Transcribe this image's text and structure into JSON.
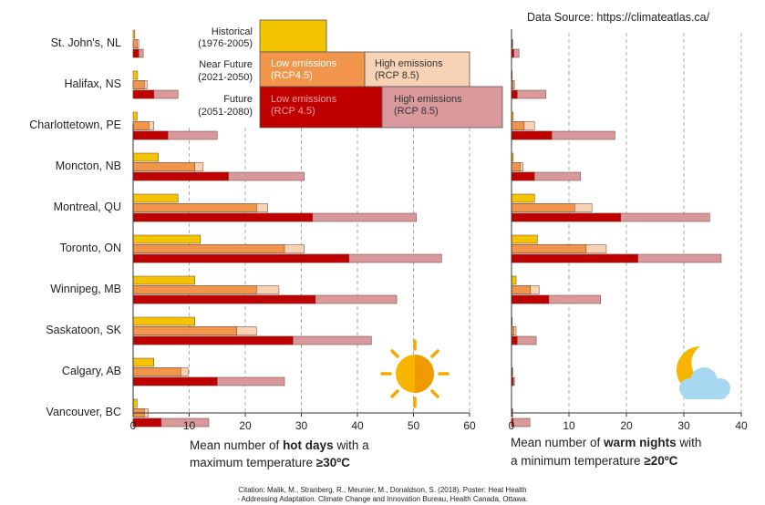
{
  "source": "Data Source: https://climateatlas.ca/",
  "citation": [
    "Citation: Malik, M., Stranberg, R., Meunier, M., Donaldson, S. (2018). Poster: Heat Health",
    "- Addressing Adaptation. Climate Change and Innovation Bureau, Health Canada, Ottawa."
  ],
  "legend": {
    "historical": {
      "label": "Historical",
      "period": "(1976-2005)"
    },
    "near_future": {
      "label": "Near Future",
      "period": "(2021-2050)"
    },
    "future": {
      "label": "Future",
      "period": "(2051-2080)"
    },
    "near_low": [
      "Low emissions",
      "(RCP4.5)"
    ],
    "near_high": [
      "High emissions",
      "(RCP 8.5)"
    ],
    "far_low": [
      "Low emissions",
      "(RCP 4.5)"
    ],
    "far_high": [
      "High emissions",
      "(RCP 8.5)"
    ]
  },
  "colors": {
    "historical": "#f5c400",
    "near_low": "#f0954a",
    "near_high": "#f8d2b4",
    "far_low": "#c00000",
    "far_high": "#d9999c"
  },
  "icons": [
    "sun-icon",
    "moon-cloud-icon"
  ],
  "chart_data": [
    {
      "type": "bar",
      "orientation": "horizontal",
      "categories": [
        "St. John's, NL",
        "Halifax, NS",
        "Charlottetown, PE",
        "Moncton, NB",
        "Montreal, QU",
        "Toronto, ON",
        "Winnipeg, MB",
        "Saskatoon, SK",
        "Calgary, AB",
        "Vancouver, BC"
      ],
      "xlabel": [
        "Mean number of ",
        "hot days",
        " with a",
        "maximum temperature ",
        "≥30ºC"
      ],
      "xlim": [
        0,
        60
      ],
      "xticks": [
        0,
        10,
        20,
        30,
        40,
        50,
        60
      ],
      "series": [
        {
          "name": "Historical (1976-2005)",
          "values": [
            0.3,
            0.8,
            0.7,
            4.5,
            8,
            12,
            11,
            11,
            3.7,
            0.7
          ]
        },
        {
          "name": "Near Future (2021-2050) Low emissions (RCP4.5)",
          "values": [
            0.7,
            2,
            2.8,
            11,
            22,
            27,
            22,
            18.5,
            8.5,
            2
          ]
        },
        {
          "name": "Near Future (2021-2050) High emissions (RCP 8.5)",
          "values": [
            1,
            2.5,
            3.7,
            12.5,
            24,
            30.5,
            26,
            22,
            9.8,
            2.7
          ]
        },
        {
          "name": "Future (2051-2080) Low emissions (RCP 4.5)",
          "values": [
            1,
            3.7,
            6.2,
            17,
            32,
            38.5,
            32.5,
            28.5,
            15,
            5
          ]
        },
        {
          "name": "Future (2051-2080) High emissions (RCP 8.5)",
          "values": [
            1.8,
            8,
            15,
            30.5,
            50.5,
            55,
            47,
            42.5,
            27,
            13.5
          ]
        }
      ]
    },
    {
      "type": "bar",
      "orientation": "horizontal",
      "categories": [
        "St. John's, NL",
        "Halifax, NS",
        "Charlottetown, PE",
        "Moncton, NB",
        "Montreal, QU",
        "Toronto, ON",
        "Winnipeg, MB",
        "Saskatoon, SK",
        "Calgary, AB",
        "Vancouver, BC"
      ],
      "xlabel": [
        "Mean number of ",
        "warm nights",
        " with",
        "a minimum temperature ",
        "≥20ºC"
      ],
      "xlim": [
        0,
        40
      ],
      "xticks": [
        0,
        10,
        20,
        30,
        40
      ],
      "series": [
        {
          "name": "Historical (1976-2005)",
          "values": [
            0,
            0.1,
            0.3,
            0.3,
            4,
            4.5,
            0.8,
            0.1,
            0,
            0
          ]
        },
        {
          "name": "Near Future (2021-2050) Low emissions (RCP4.5)",
          "values": [
            0.1,
            0.3,
            2.2,
            1.5,
            11,
            13,
            3.3,
            0.4,
            0.1,
            0.1
          ]
        },
        {
          "name": "Near Future (2021-2050) High emissions (RCP 8.5)",
          "values": [
            0.2,
            0.5,
            4,
            2,
            14,
            16.5,
            4.8,
            0.8,
            0.2,
            0.2
          ]
        },
        {
          "name": "Future (2051-2080) Low emissions (RCP 4.5)",
          "values": [
            0.4,
            1,
            7,
            4,
            19,
            22,
            6.5,
            1,
            0.3,
            0.3
          ]
        },
        {
          "name": "Future (2051-2080) High emissions (RCP 8.5)",
          "values": [
            1.3,
            6,
            18,
            12,
            34.5,
            36.5,
            15.5,
            4.3,
            0.5,
            3.2
          ]
        }
      ]
    }
  ]
}
